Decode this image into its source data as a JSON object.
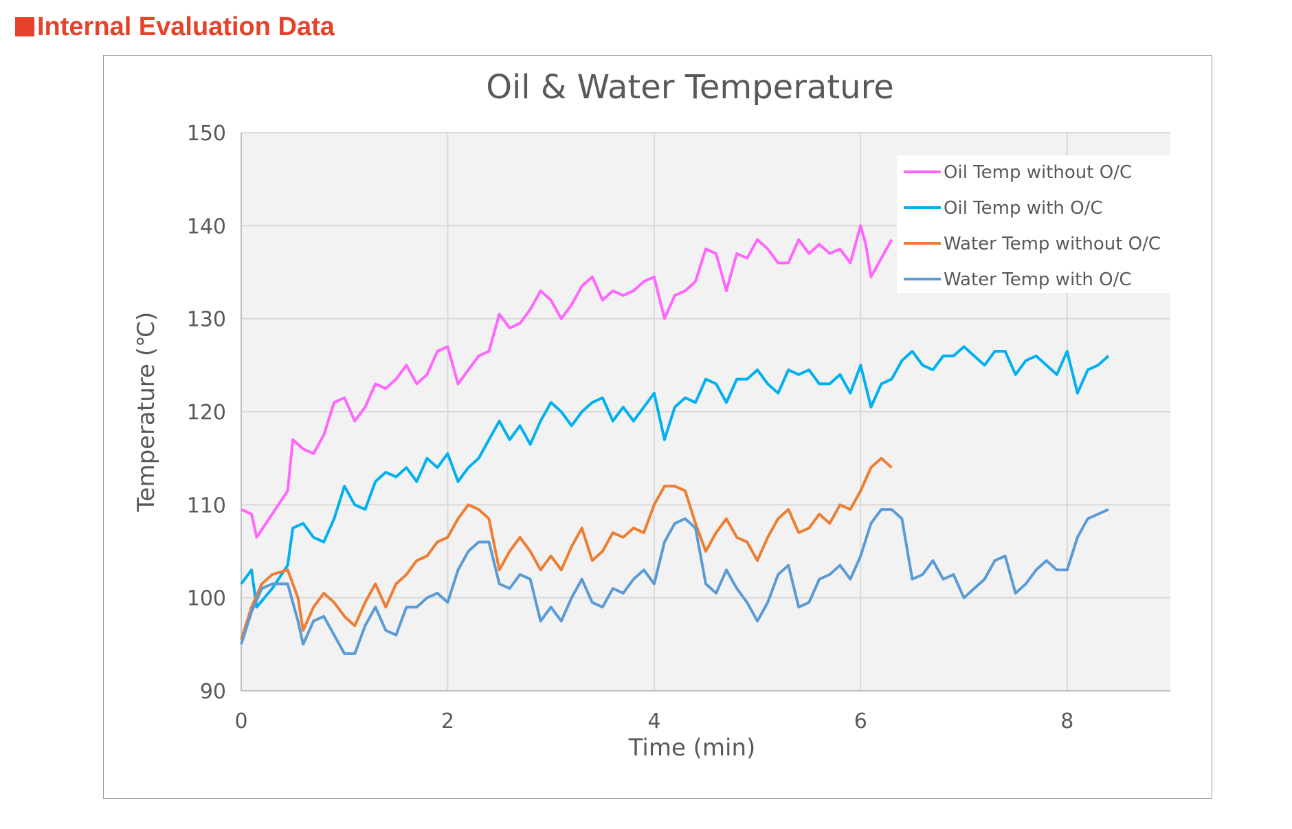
{
  "page": {
    "heading": "Internal Evaluation Data",
    "heading_color": "#e8412a"
  },
  "chart_data": {
    "type": "line",
    "title": "Oil & Water Temperature",
    "xlabel": "Time (min)",
    "ylabel": "Temperature (℃)",
    "xlim": [
      0,
      9
    ],
    "ylim": [
      90,
      150
    ],
    "xticks": [
      0,
      2,
      4,
      6,
      8
    ],
    "yticks": [
      90,
      100,
      110,
      120,
      130,
      140,
      150
    ],
    "grid": true,
    "legend_position": "top-right",
    "series": [
      {
        "name": "Oil Temp without O/C",
        "color": "#ff66ff",
        "x": [
          0.0,
          0.1,
          0.15,
          0.3,
          0.45,
          0.5,
          0.6,
          0.7,
          0.8,
          0.9,
          1.0,
          1.1,
          1.2,
          1.3,
          1.4,
          1.5,
          1.6,
          1.7,
          1.8,
          1.9,
          2.0,
          2.1,
          2.2,
          2.3,
          2.4,
          2.5,
          2.6,
          2.7,
          2.8,
          2.9,
          3.0,
          3.1,
          3.2,
          3.3,
          3.4,
          3.5,
          3.6,
          3.7,
          3.8,
          3.9,
          4.0,
          4.1,
          4.2,
          4.3,
          4.4,
          4.5,
          4.6,
          4.7,
          4.8,
          4.9,
          5.0,
          5.1,
          5.2,
          5.3,
          5.4,
          5.5,
          5.6,
          5.7,
          5.8,
          5.9,
          6.0,
          6.05,
          6.1,
          6.2,
          6.3
        ],
        "values": [
          109.5,
          109.0,
          106.5,
          109.0,
          111.5,
          117.0,
          116.0,
          115.5,
          117.5,
          121.0,
          121.5,
          119.0,
          120.5,
          123.0,
          122.5,
          123.5,
          125.0,
          123.0,
          124.0,
          126.5,
          127.0,
          123.0,
          124.5,
          126.0,
          126.5,
          130.5,
          129.0,
          129.5,
          131.0,
          133.0,
          132.0,
          130.0,
          131.5,
          133.5,
          134.5,
          132.0,
          133.0,
          132.5,
          133.0,
          134.0,
          134.5,
          130.0,
          132.5,
          133.0,
          134.0,
          137.5,
          137.0,
          133.0,
          137.0,
          136.5,
          138.5,
          137.5,
          136.0,
          136.0,
          138.5,
          137.0,
          138.0,
          137.0,
          137.5,
          136.0,
          140.0,
          138.0,
          134.5,
          136.5,
          138.5
        ]
      },
      {
        "name": "Oil Temp with O/C",
        "color": "#00b0f0",
        "x": [
          0.0,
          0.1,
          0.15,
          0.3,
          0.45,
          0.5,
          0.6,
          0.7,
          0.8,
          0.9,
          1.0,
          1.1,
          1.2,
          1.3,
          1.4,
          1.5,
          1.6,
          1.7,
          1.8,
          1.9,
          2.0,
          2.1,
          2.2,
          2.3,
          2.4,
          2.5,
          2.6,
          2.7,
          2.8,
          2.9,
          3.0,
          3.1,
          3.2,
          3.3,
          3.4,
          3.5,
          3.6,
          3.7,
          3.8,
          3.9,
          4.0,
          4.1,
          4.2,
          4.3,
          4.4,
          4.5,
          4.6,
          4.7,
          4.8,
          4.9,
          5.0,
          5.1,
          5.2,
          5.3,
          5.4,
          5.5,
          5.6,
          5.7,
          5.8,
          5.9,
          6.0,
          6.1,
          6.2,
          6.3,
          6.4,
          6.5,
          6.6,
          6.7,
          6.8,
          6.9,
          7.0,
          7.1,
          7.2,
          7.3,
          7.4,
          7.5,
          7.6,
          7.7,
          7.8,
          7.9,
          8.0,
          8.1,
          8.2,
          8.3,
          8.4
        ],
        "values": [
          101.5,
          103.0,
          99.0,
          101.0,
          103.5,
          107.5,
          108.0,
          106.5,
          106.0,
          108.5,
          112.0,
          110.0,
          109.5,
          112.5,
          113.5,
          113.0,
          114.0,
          112.5,
          115.0,
          114.0,
          115.5,
          112.5,
          114.0,
          115.0,
          117.0,
          119.0,
          117.0,
          118.5,
          116.5,
          119.0,
          121.0,
          120.0,
          118.5,
          120.0,
          121.0,
          121.5,
          119.0,
          120.5,
          119.0,
          120.5,
          122.0,
          117.0,
          120.5,
          121.5,
          121.0,
          123.5,
          123.0,
          121.0,
          123.5,
          123.5,
          124.5,
          123.0,
          122.0,
          124.5,
          124.0,
          124.5,
          123.0,
          123.0,
          124.0,
          122.0,
          125.0,
          120.5,
          123.0,
          123.5,
          125.5,
          126.5,
          125.0,
          124.5,
          126.0,
          126.0,
          127.0,
          126.0,
          125.0,
          126.5,
          126.5,
          124.0,
          125.5,
          126.0,
          125.0,
          124.0,
          126.5,
          122.0,
          124.5,
          125.0,
          126.0
        ]
      },
      {
        "name": "Water Temp without O/C",
        "color": "#ed7d31",
        "x": [
          0.0,
          0.1,
          0.2,
          0.3,
          0.45,
          0.55,
          0.6,
          0.7,
          0.8,
          0.9,
          1.0,
          1.1,
          1.2,
          1.3,
          1.4,
          1.5,
          1.6,
          1.7,
          1.8,
          1.9,
          2.0,
          2.1,
          2.2,
          2.3,
          2.4,
          2.5,
          2.6,
          2.7,
          2.8,
          2.9,
          3.0,
          3.1,
          3.2,
          3.3,
          3.4,
          3.5,
          3.6,
          3.7,
          3.8,
          3.9,
          4.0,
          4.1,
          4.2,
          4.3,
          4.4,
          4.5,
          4.6,
          4.7,
          4.8,
          4.9,
          5.0,
          5.1,
          5.2,
          5.3,
          5.4,
          5.5,
          5.6,
          5.7,
          5.8,
          5.9,
          6.0,
          6.1,
          6.2,
          6.3
        ],
        "values": [
          95.5,
          99.0,
          101.5,
          102.5,
          103.0,
          100.0,
          96.5,
          99.0,
          100.5,
          99.5,
          98.0,
          97.0,
          99.5,
          101.5,
          99.0,
          101.5,
          102.5,
          104.0,
          104.5,
          106.0,
          106.5,
          108.5,
          110.0,
          109.5,
          108.5,
          103.0,
          105.0,
          106.5,
          105.0,
          103.0,
          104.5,
          103.0,
          105.5,
          107.5,
          104.0,
          105.0,
          107.0,
          106.5,
          107.5,
          107.0,
          110.0,
          112.0,
          112.0,
          111.5,
          108.0,
          105.0,
          107.0,
          108.5,
          106.5,
          106.0,
          104.0,
          106.5,
          108.5,
          109.5,
          107.0,
          107.5,
          109.0,
          108.0,
          110.0,
          109.5,
          111.5,
          114.0,
          115.0,
          114.0
        ]
      },
      {
        "name": "Water Temp with O/C",
        "color": "#5b9bd5",
        "x": [
          0.0,
          0.1,
          0.2,
          0.3,
          0.45,
          0.55,
          0.6,
          0.7,
          0.8,
          0.9,
          1.0,
          1.1,
          1.2,
          1.3,
          1.4,
          1.5,
          1.6,
          1.7,
          1.8,
          1.9,
          2.0,
          2.1,
          2.2,
          2.3,
          2.4,
          2.5,
          2.6,
          2.7,
          2.8,
          2.9,
          3.0,
          3.1,
          3.2,
          3.3,
          3.4,
          3.5,
          3.6,
          3.7,
          3.8,
          3.9,
          4.0,
          4.1,
          4.2,
          4.3,
          4.4,
          4.5,
          4.6,
          4.7,
          4.8,
          4.9,
          5.0,
          5.1,
          5.2,
          5.3,
          5.4,
          5.5,
          5.6,
          5.7,
          5.8,
          5.9,
          6.0,
          6.1,
          6.2,
          6.3,
          6.4,
          6.5,
          6.6,
          6.7,
          6.8,
          6.9,
          7.0,
          7.1,
          7.2,
          7.3,
          7.4,
          7.5,
          7.6,
          7.7,
          7.8,
          7.9,
          8.0,
          8.1,
          8.2,
          8.3,
          8.4
        ],
        "values": [
          95.0,
          98.5,
          101.0,
          101.5,
          101.5,
          97.5,
          95.0,
          97.5,
          98.0,
          96.0,
          94.0,
          94.0,
          97.0,
          99.0,
          96.5,
          96.0,
          99.0,
          99.0,
          100.0,
          100.5,
          99.5,
          103.0,
          105.0,
          106.0,
          106.0,
          101.5,
          101.0,
          102.5,
          102.0,
          97.5,
          99.0,
          97.5,
          100.0,
          102.0,
          99.5,
          99.0,
          101.0,
          100.5,
          102.0,
          103.0,
          101.5,
          106.0,
          108.0,
          108.5,
          107.5,
          101.5,
          100.5,
          103.0,
          101.0,
          99.5,
          97.5,
          99.5,
          102.5,
          103.5,
          99.0,
          99.5,
          102.0,
          102.5,
          103.5,
          102.0,
          104.5,
          108.0,
          109.5,
          109.5,
          108.5,
          102.0,
          102.5,
          104.0,
          102.0,
          102.5,
          100.0,
          101.0,
          102.0,
          104.0,
          104.5,
          100.5,
          101.5,
          103.0,
          104.0,
          103.0,
          103.0,
          106.5,
          108.5,
          109.0,
          109.5
        ]
      }
    ]
  }
}
